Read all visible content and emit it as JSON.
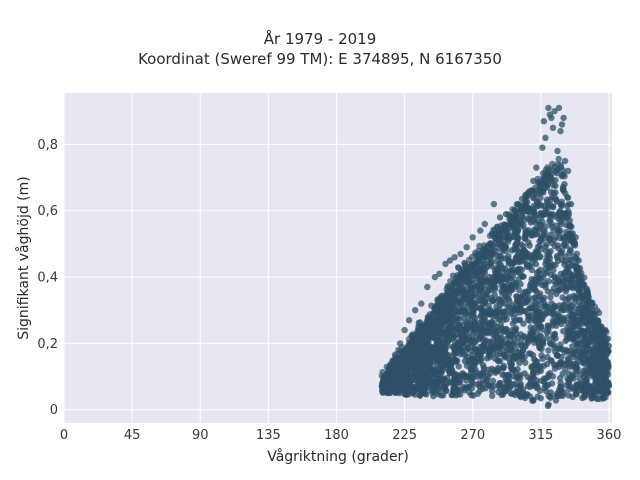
{
  "chart_data": {
    "type": "scatter",
    "title": "År 1979 - 2019",
    "subtitle": "Koordinat (Sweref 99 TM): E 374895, N 6167350",
    "xlabel": "Vågriktning (grader)",
    "ylabel": "Signifikant våghöjd (m)",
    "xlim": [
      0,
      362
    ],
    "ylim": [
      -0.04,
      0.955
    ],
    "xticks": [
      0,
      45,
      90,
      135,
      180,
      225,
      270,
      315,
      360
    ],
    "xtick_labels": [
      "0",
      "45",
      "90",
      "135",
      "180",
      "225",
      "270",
      "315",
      "360"
    ],
    "yticks": [
      0,
      0.2,
      0.4,
      0.6,
      0.8
    ],
    "ytick_labels": [
      "0",
      "0,2",
      "0,4",
      "0,6",
      "0,8"
    ],
    "grid": true,
    "marker_color": "#2e5067",
    "background_color": "#e6e7f0",
    "envelope": {
      "x": [
        210,
        215,
        222,
        230,
        240,
        250,
        260,
        270,
        280,
        290,
        300,
        310,
        318,
        322,
        326,
        330,
        335,
        340,
        345,
        350,
        355,
        360
      ],
      "y_max": [
        0.09,
        0.12,
        0.16,
        0.21,
        0.27,
        0.33,
        0.4,
        0.44,
        0.5,
        0.55,
        0.6,
        0.65,
        0.7,
        0.73,
        0.74,
        0.7,
        0.55,
        0.42,
        0.36,
        0.3,
        0.25,
        0.2
      ],
      "y_min": [
        0.05,
        0.05,
        0.05,
        0.04,
        0.04,
        0.04,
        0.04,
        0.04,
        0.04,
        0.04,
        0.04,
        0.02,
        0.01,
        0.01,
        0.01,
        0.01,
        0.02,
        0.03,
        0.03,
        0.03,
        0.03,
        0.04
      ]
    },
    "outliers": {
      "x": [
        320,
        322,
        324,
        327,
        330,
        318,
        316,
        328,
        331,
        333,
        323,
        326,
        329,
        312,
        310,
        305,
        300,
        298,
        292,
        288,
        284,
        278,
        275,
        270,
        266,
        262,
        258,
        255,
        252,
        248,
        245,
        240,
        236,
        232,
        228,
        225,
        222,
        219,
        335,
        338,
        340,
        343,
        346,
        349,
        352,
        355,
        357,
        317,
        321
      ],
      "y": [
        0.91,
        0.88,
        0.9,
        0.91,
        0.88,
        0.82,
        0.79,
        0.84,
        0.75,
        0.72,
        0.85,
        0.78,
        0.86,
        0.73,
        0.69,
        0.63,
        0.62,
        0.6,
        0.59,
        0.58,
        0.62,
        0.56,
        0.54,
        0.52,
        0.49,
        0.47,
        0.46,
        0.45,
        0.44,
        0.41,
        0.4,
        0.37,
        0.32,
        0.3,
        0.27,
        0.24,
        0.2,
        0.16,
        0.62,
        0.52,
        0.45,
        0.38,
        0.35,
        0.3,
        0.27,
        0.25,
        0.22,
        0.87,
        0.89
      ]
    }
  }
}
